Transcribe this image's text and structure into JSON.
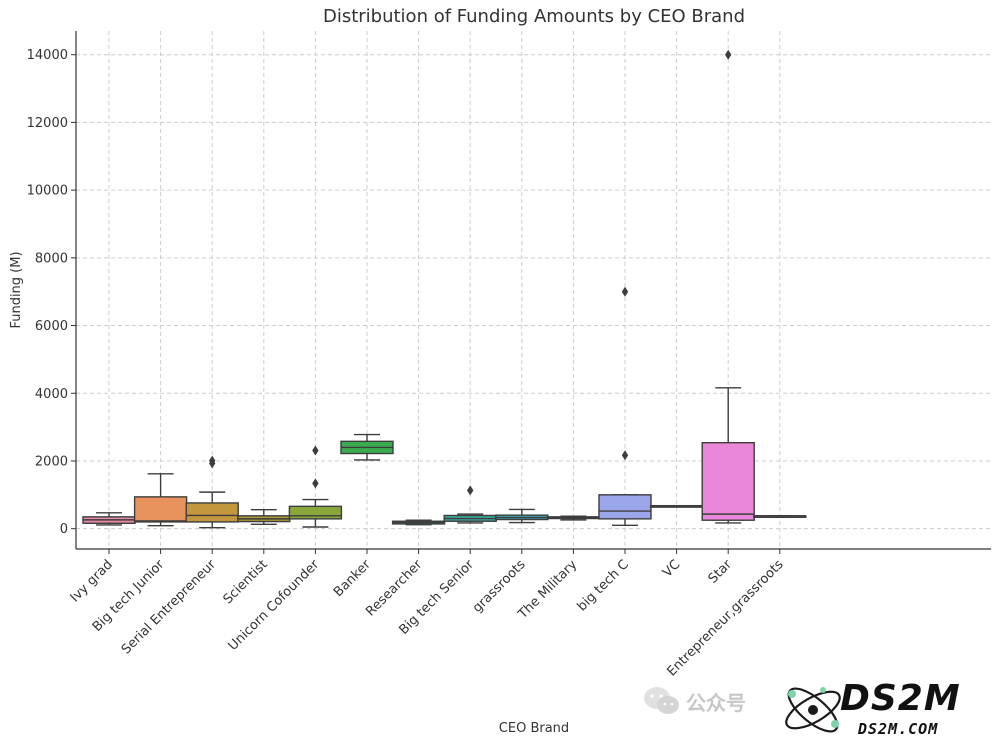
{
  "chart_data": {
    "type": "box",
    "title": "Distribution of Funding Amounts by CEO Brand",
    "xlabel": "CEO Brand",
    "ylabel": "Funding (M)",
    "ylim": [
      -600,
      14700
    ],
    "yticks": [
      0,
      2000,
      4000,
      6000,
      8000,
      10000,
      12000,
      14000
    ],
    "grid": true,
    "categories": [
      {
        "name": "Ivy grad",
        "color": "#e58aa2",
        "whislo": 110,
        "q1": 160,
        "med": 260,
        "q3": 350,
        "whishi": 470,
        "fliers": []
      },
      {
        "name": "Big tech Junior",
        "color": "#e8925e",
        "whislo": 90,
        "q1": 200,
        "med": 230,
        "q3": 940,
        "whishi": 1620,
        "fliers": []
      },
      {
        "name": "Serial Entrepreneur",
        "color": "#c3973d",
        "whislo": 30,
        "q1": 200,
        "med": 390,
        "q3": 760,
        "whishi": 1080,
        "fliers": [
          1930,
          2010
        ]
      },
      {
        "name": "Scientist",
        "color": "#a99b3a",
        "whislo": 130,
        "q1": 210,
        "med": 290,
        "q3": 380,
        "whishi": 560,
        "fliers": []
      },
      {
        "name": "Unicorn Cofounder",
        "color": "#8aa73c",
        "whislo": 50,
        "q1": 290,
        "med": 380,
        "q3": 660,
        "whishi": 860,
        "fliers": [
          1340,
          2310
        ]
      },
      {
        "name": "Banker",
        "color": "#3aac4f",
        "whislo": 2030,
        "q1": 2220,
        "med": 2400,
        "q3": 2580,
        "whishi": 2780,
        "fliers": []
      },
      {
        "name": "Researcher",
        "color": "#3aab84",
        "whislo": 120,
        "q1": 140,
        "med": 180,
        "q3": 220,
        "whishi": 250,
        "fliers": []
      },
      {
        "name": "Big tech Senior",
        "color": "#39a89e",
        "whislo": 170,
        "q1": 220,
        "med": 300,
        "q3": 390,
        "whishi": 430,
        "fliers": [
          1130
        ]
      },
      {
        "name": "grassroots",
        "color": "#3ba7b3",
        "whislo": 180,
        "q1": 270,
        "med": 330,
        "q3": 400,
        "whishi": 570,
        "fliers": []
      },
      {
        "name": "The Military",
        "color": "#3d9ec4",
        "whislo": 260,
        "q1": 300,
        "med": 320,
        "q3": 350,
        "whishi": 370,
        "fliers": []
      },
      {
        "name": "big tech C",
        "color": "#9aa5ea",
        "whislo": 100,
        "q1": 290,
        "med": 520,
        "q3": 1000,
        "whishi": 1000,
        "fliers": [
          2170,
          7000
        ]
      },
      {
        "name": "VC",
        "color": "#b88be6",
        "whislo": 680,
        "q1": 680,
        "med": 680,
        "q3": 680,
        "whishi": 680,
        "fliers": []
      },
      {
        "name": "Star",
        "color": "#e987da",
        "whislo": 170,
        "q1": 250,
        "med": 430,
        "q3": 2540,
        "whishi": 4160,
        "fliers": [
          14000
        ]
      },
      {
        "name": "Entrepreneur,grassroots",
        "color": "#e98ab8",
        "whislo": 380,
        "q1": 380,
        "med": 380,
        "q3": 380,
        "whishi": 380,
        "fliers": []
      }
    ]
  },
  "watermark": {
    "wechat_text": "公众号",
    "brand_text": "DS2M",
    "brand_url_text": "DS2M.COM"
  }
}
